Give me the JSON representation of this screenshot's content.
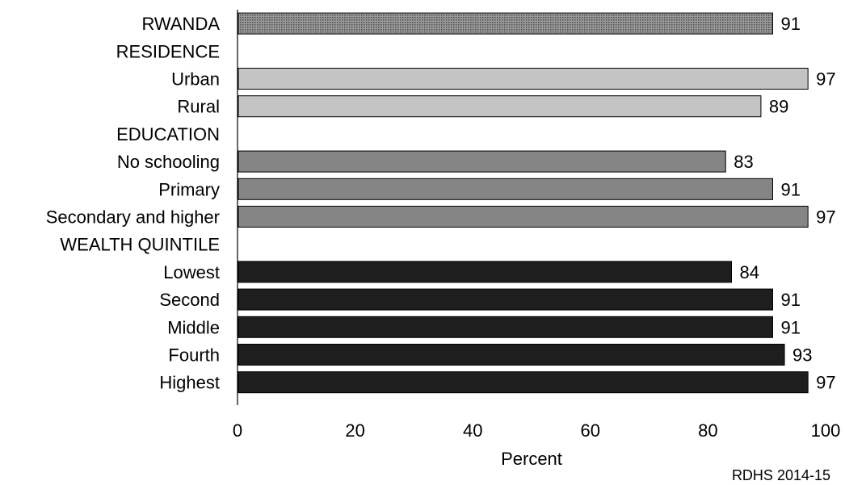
{
  "chart_data": {
    "type": "bar",
    "orientation": "horizontal",
    "rows": [
      {
        "label": "RWANDA",
        "value": 91,
        "group": "total"
      },
      {
        "label": "RESIDENCE",
        "value": null,
        "group": "header"
      },
      {
        "label": "Urban",
        "value": 97,
        "group": "residence"
      },
      {
        "label": "Rural",
        "value": 89,
        "group": "residence"
      },
      {
        "label": "EDUCATION",
        "value": null,
        "group": "header"
      },
      {
        "label": "No schooling",
        "value": 83,
        "group": "education"
      },
      {
        "label": "Primary",
        "value": 91,
        "group": "education"
      },
      {
        "label": "Secondary and higher",
        "value": 97,
        "group": "education"
      },
      {
        "label": "WEALTH QUINTILE",
        "value": null,
        "group": "header"
      },
      {
        "label": "Lowest",
        "value": 84,
        "group": "wealth"
      },
      {
        "label": "Second",
        "value": 91,
        "group": "wealth"
      },
      {
        "label": "Middle",
        "value": 91,
        "group": "wealth"
      },
      {
        "label": "Fourth",
        "value": 93,
        "group": "wealth"
      },
      {
        "label": "Highest",
        "value": 97,
        "group": "wealth"
      }
    ],
    "xlabel": "Percent",
    "xlim": [
      0,
      100
    ],
    "xticks": [
      0,
      20,
      40,
      60,
      80,
      100
    ],
    "grid": false,
    "colors": {
      "total": "#8c8c8c",
      "residence": "#c4c4c4",
      "education": "#858585",
      "wealth": "#1e1e1e"
    }
  },
  "source": "RDHS 2014-15"
}
